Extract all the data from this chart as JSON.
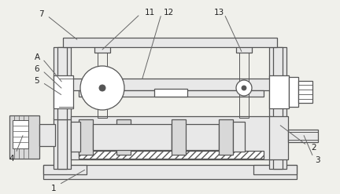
{
  "bg_color": "#f0f0eb",
  "lc": "#999999",
  "dc": "#555555",
  "fc_light": "#e8e8e8",
  "fc_mid": "#d8d8d8",
  "fc_white": "#ffffff",
  "ann_color": "#666666",
  "label_color": "#222222",
  "ann_lw": 0.7,
  "lw_thin": 0.7,
  "lw_med": 0.9,
  "lw_thick": 1.1,
  "label_fs": 7.5
}
